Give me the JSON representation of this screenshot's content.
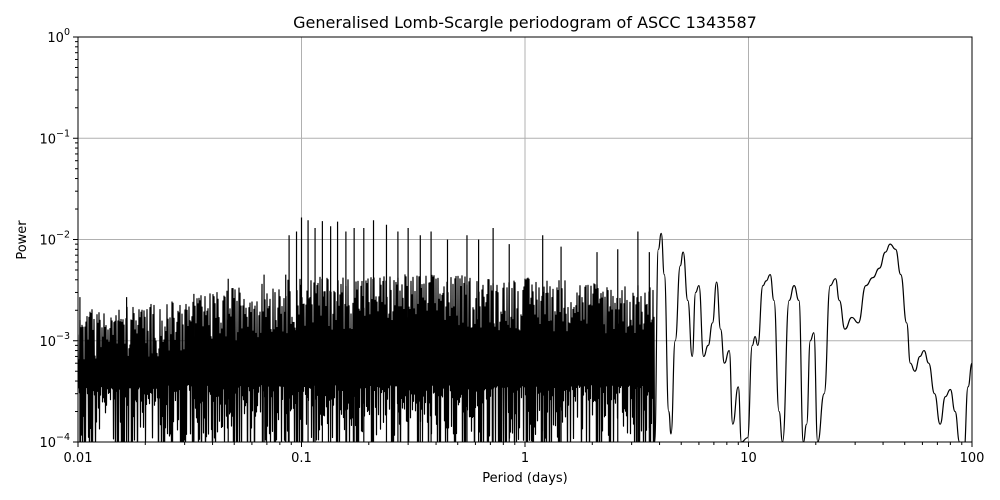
{
  "chart_data": {
    "type": "line",
    "title": "Generalised Lomb-Scargle periodogram of ASCC 1343587",
    "xlabel": "Period (days)",
    "ylabel": "Power",
    "xscale": "log",
    "yscale": "log",
    "xlim": [
      0.01,
      100
    ],
    "ylim": [
      0.0001,
      1
    ],
    "grid": true,
    "x_ticks": [
      {
        "value": 0.01,
        "label": "0.01"
      },
      {
        "value": 0.1,
        "label": "0.1"
      },
      {
        "value": 1,
        "label": "1"
      },
      {
        "value": 10,
        "label": "10"
      },
      {
        "value": 100,
        "label": "100"
      }
    ],
    "y_ticks": [
      {
        "value": 0.0001,
        "base": "10",
        "exp": "−4"
      },
      {
        "value": 0.001,
        "base": "10",
        "exp": "−3"
      },
      {
        "value": 0.01,
        "base": "10",
        "exp": "−2"
      },
      {
        "value": 0.1,
        "base": "10",
        "exp": "−1"
      },
      {
        "value": 1,
        "base": "10",
        "exp": "0"
      }
    ],
    "line_color": "#000000",
    "dense_envelope": [
      [
        0.01,
        0.0016
      ],
      [
        0.012,
        0.0018
      ],
      [
        0.015,
        0.0018
      ],
      [
        0.02,
        0.0019
      ],
      [
        0.03,
        0.0021
      ],
      [
        0.04,
        0.0025
      ],
      [
        0.05,
        0.0028
      ],
      [
        0.07,
        0.0031
      ],
      [
        0.1,
        0.0035
      ],
      [
        0.15,
        0.0036
      ],
      [
        0.2,
        0.0037
      ],
      [
        0.3,
        0.0038
      ],
      [
        0.5,
        0.0037
      ],
      [
        0.7,
        0.0035
      ],
      [
        1.0,
        0.0035
      ],
      [
        1.5,
        0.0034
      ],
      [
        2.0,
        0.0032
      ],
      [
        3.0,
        0.003
      ],
      [
        4.0,
        0.0028
      ]
    ],
    "labelled_peaks": [
      {
        "x": 0.0102,
        "y": 0.0027
      },
      {
        "x": 0.0165,
        "y": 0.0027
      },
      {
        "x": 0.033,
        "y": 0.0029
      },
      {
        "x": 0.047,
        "y": 0.0041
      },
      {
        "x": 0.068,
        "y": 0.0045
      },
      {
        "x": 0.085,
        "y": 0.0045
      },
      {
        "x": 0.088,
        "y": 0.011
      },
      {
        "x": 0.095,
        "y": 0.012
      },
      {
        "x": 0.1,
        "y": 0.0165
      },
      {
        "x": 0.107,
        "y": 0.0155
      },
      {
        "x": 0.115,
        "y": 0.013
      },
      {
        "x": 0.124,
        "y": 0.0152
      },
      {
        "x": 0.135,
        "y": 0.0135
      },
      {
        "x": 0.145,
        "y": 0.015
      },
      {
        "x": 0.158,
        "y": 0.012
      },
      {
        "x": 0.172,
        "y": 0.013
      },
      {
        "x": 0.19,
        "y": 0.013
      },
      {
        "x": 0.21,
        "y": 0.0155
      },
      {
        "x": 0.24,
        "y": 0.014
      },
      {
        "x": 0.27,
        "y": 0.012
      },
      {
        "x": 0.3,
        "y": 0.013
      },
      {
        "x": 0.34,
        "y": 0.011
      },
      {
        "x": 0.38,
        "y": 0.012
      },
      {
        "x": 0.45,
        "y": 0.01
      },
      {
        "x": 0.55,
        "y": 0.011
      },
      {
        "x": 0.62,
        "y": 0.01
      },
      {
        "x": 0.72,
        "y": 0.013
      },
      {
        "x": 0.85,
        "y": 0.009
      },
      {
        "x": 1.2,
        "y": 0.011
      },
      {
        "x": 1.45,
        "y": 0.0085
      },
      {
        "x": 2.1,
        "y": 0.0075
      },
      {
        "x": 2.6,
        "y": 0.008
      },
      {
        "x": 3.2,
        "y": 0.012
      },
      {
        "x": 3.6,
        "y": 0.0075
      }
    ],
    "smooth_curve": [
      [
        3.8,
        0.0001
      ],
      [
        3.95,
        0.008
      ],
      [
        4.07,
        0.0115
      ],
      [
        4.2,
        0.0045
      ],
      [
        4.4,
        0.0002
      ],
      [
        4.5,
        0.00012
      ],
      [
        4.7,
        0.001
      ],
      [
        4.95,
        0.0055
      ],
      [
        5.1,
        0.0075
      ],
      [
        5.35,
        0.0025
      ],
      [
        5.6,
        0.0007
      ],
      [
        5.8,
        0.003
      ],
      [
        6.0,
        0.0035
      ],
      [
        6.3,
        0.0007
      ],
      [
        6.6,
        0.0009
      ],
      [
        6.9,
        0.0015
      ],
      [
        7.2,
        0.0038
      ],
      [
        7.5,
        0.0013
      ],
      [
        7.8,
        0.0006
      ],
      [
        8.2,
        0.0008
      ],
      [
        8.5,
        0.00015
      ],
      [
        9.0,
        0.00035
      ],
      [
        9.3,
        0.0001
      ],
      [
        9.9,
        0.00011
      ],
      [
        10.4,
        0.0009
      ],
      [
        10.7,
        0.0011
      ],
      [
        11.0,
        0.0009
      ],
      [
        11.6,
        0.0035
      ],
      [
        12.0,
        0.0039
      ],
      [
        12.5,
        0.0045
      ],
      [
        13.0,
        0.0025
      ],
      [
        13.7,
        0.0002
      ],
      [
        14.2,
        0.0001
      ],
      [
        15.2,
        0.0025
      ],
      [
        16.0,
        0.0035
      ],
      [
        16.8,
        0.0025
      ],
      [
        17.6,
        0.0001
      ],
      [
        18.2,
        0.00015
      ],
      [
        18.9,
        0.001
      ],
      [
        19.6,
        0.0012
      ],
      [
        20.4,
        0.0001
      ],
      [
        21.8,
        0.0003
      ],
      [
        23.2,
        0.0035
      ],
      [
        24.5,
        0.0041
      ],
      [
        25.5,
        0.0025
      ],
      [
        27.0,
        0.0013
      ],
      [
        29.0,
        0.0017
      ],
      [
        31.0,
        0.0015
      ],
      [
        33.5,
        0.0035
      ],
      [
        36.0,
        0.0042
      ],
      [
        38.5,
        0.0052
      ],
      [
        41.0,
        0.0075
      ],
      [
        43.0,
        0.009
      ],
      [
        45.5,
        0.008
      ],
      [
        48.0,
        0.0045
      ],
      [
        51.0,
        0.0015
      ],
      [
        53.0,
        0.0006
      ],
      [
        55.5,
        0.0005
      ],
      [
        58.5,
        0.0007
      ],
      [
        61.0,
        0.0008
      ],
      [
        64.0,
        0.0006
      ],
      [
        68.0,
        0.0003
      ],
      [
        72.0,
        0.00015
      ],
      [
        76.0,
        0.00028
      ],
      [
        80.0,
        0.00033
      ],
      [
        84.0,
        0.0002
      ],
      [
        88.0,
        0.0001
      ],
      [
        92.0,
        8e-05
      ],
      [
        96.0,
        0.00035
      ],
      [
        100.0,
        0.0006
      ]
    ]
  }
}
